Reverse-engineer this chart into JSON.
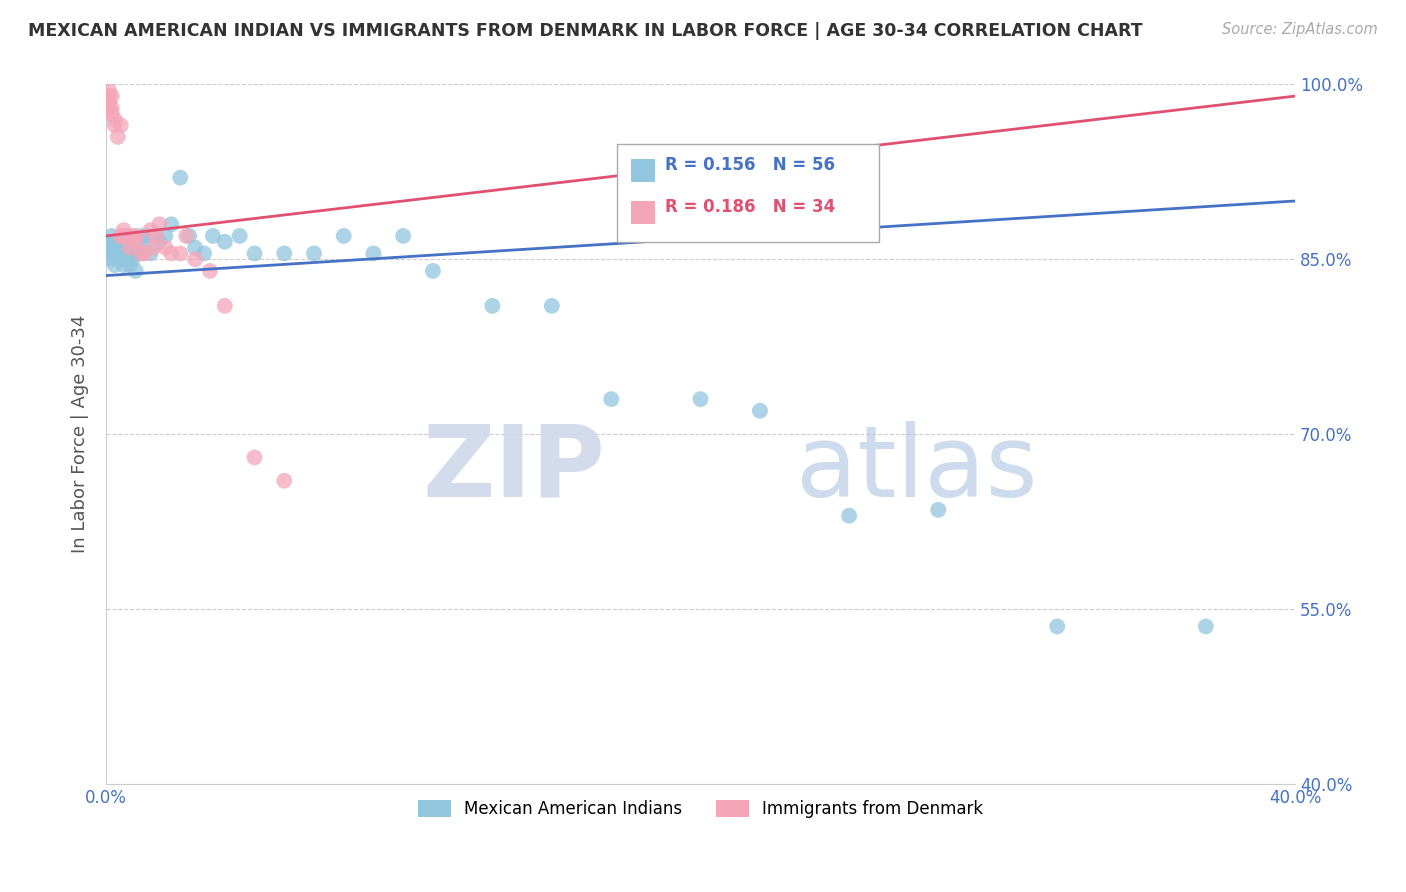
{
  "title": "MEXICAN AMERICAN INDIAN VS IMMIGRANTS FROM DENMARK IN LABOR FORCE | AGE 30-34 CORRELATION CHART",
  "source": "Source: ZipAtlas.com",
  "ylabel": "In Labor Force | Age 30-34",
  "xlim": [
    0.0,
    0.4
  ],
  "ylim": [
    0.4,
    1.0
  ],
  "xticks": [
    0.0,
    0.05,
    0.1,
    0.15,
    0.2,
    0.25,
    0.3,
    0.35,
    0.4
  ],
  "xticklabels": [
    "0.0%",
    "",
    "",
    "",
    "",
    "",
    "",
    "",
    "40.0%"
  ],
  "yticks": [
    0.4,
    0.55,
    0.7,
    0.85,
    1.0
  ],
  "yticklabels": [
    "40.0%",
    "55.0%",
    "70.0%",
    "85.0%",
    "100.0%"
  ],
  "blue_R": 0.156,
  "blue_N": 56,
  "pink_R": 0.186,
  "pink_N": 34,
  "blue_color": "#92c5de",
  "pink_color": "#f4a6b8",
  "trendline_blue": "#4472c4",
  "trendline_pink": "#e05070",
  "legend_blue_label": "Mexican American Indians",
  "legend_pink_label": "Immigrants from Denmark",
  "watermark_zip": "ZIP",
  "watermark_atlas": "atlas",
  "blue_x": [
    0.001,
    0.001,
    0.001,
    0.002,
    0.002,
    0.002,
    0.002,
    0.003,
    0.003,
    0.003,
    0.004,
    0.004,
    0.005,
    0.005,
    0.005,
    0.006,
    0.006,
    0.007,
    0.007,
    0.008,
    0.008,
    0.009,
    0.01,
    0.01,
    0.011,
    0.012,
    0.013,
    0.014,
    0.015,
    0.016,
    0.018,
    0.02,
    0.022,
    0.025,
    0.028,
    0.03,
    0.033,
    0.036,
    0.04,
    0.045,
    0.05,
    0.06,
    0.07,
    0.08,
    0.09,
    0.1,
    0.11,
    0.13,
    0.15,
    0.17,
    0.2,
    0.22,
    0.25,
    0.28,
    0.32,
    0.37
  ],
  "blue_y": [
    0.855,
    0.86,
    0.865,
    0.85,
    0.855,
    0.86,
    0.87,
    0.845,
    0.855,
    0.865,
    0.85,
    0.86,
    0.85,
    0.855,
    0.865,
    0.845,
    0.855,
    0.85,
    0.86,
    0.845,
    0.855,
    0.85,
    0.84,
    0.855,
    0.86,
    0.87,
    0.86,
    0.87,
    0.855,
    0.87,
    0.865,
    0.87,
    0.88,
    0.92,
    0.87,
    0.86,
    0.855,
    0.87,
    0.865,
    0.87,
    0.855,
    0.855,
    0.855,
    0.87,
    0.855,
    0.87,
    0.84,
    0.81,
    0.81,
    0.73,
    0.73,
    0.72,
    0.63,
    0.635,
    0.535,
    0.535
  ],
  "pink_x": [
    0.001,
    0.001,
    0.001,
    0.001,
    0.002,
    0.002,
    0.002,
    0.003,
    0.003,
    0.004,
    0.005,
    0.005,
    0.006,
    0.006,
    0.007,
    0.008,
    0.009,
    0.01,
    0.01,
    0.012,
    0.013,
    0.015,
    0.016,
    0.017,
    0.018,
    0.02,
    0.022,
    0.025,
    0.027,
    0.03,
    0.035,
    0.04,
    0.05,
    0.06
  ],
  "pink_y": [
    0.98,
    0.985,
    0.99,
    0.995,
    0.975,
    0.98,
    0.99,
    0.965,
    0.97,
    0.955,
    0.965,
    0.87,
    0.87,
    0.875,
    0.87,
    0.86,
    0.87,
    0.865,
    0.87,
    0.855,
    0.855,
    0.875,
    0.86,
    0.87,
    0.88,
    0.86,
    0.855,
    0.855,
    0.87,
    0.85,
    0.84,
    0.81,
    0.68,
    0.66
  ],
  "blue_trend_x0": 0.0,
  "blue_trend_y0": 0.836,
  "blue_trend_x1": 0.4,
  "blue_trend_y1": 0.9,
  "pink_trend_x0": 0.0,
  "pink_trend_y0": 0.87,
  "pink_trend_x1": 0.4,
  "pink_trend_y1": 0.99
}
